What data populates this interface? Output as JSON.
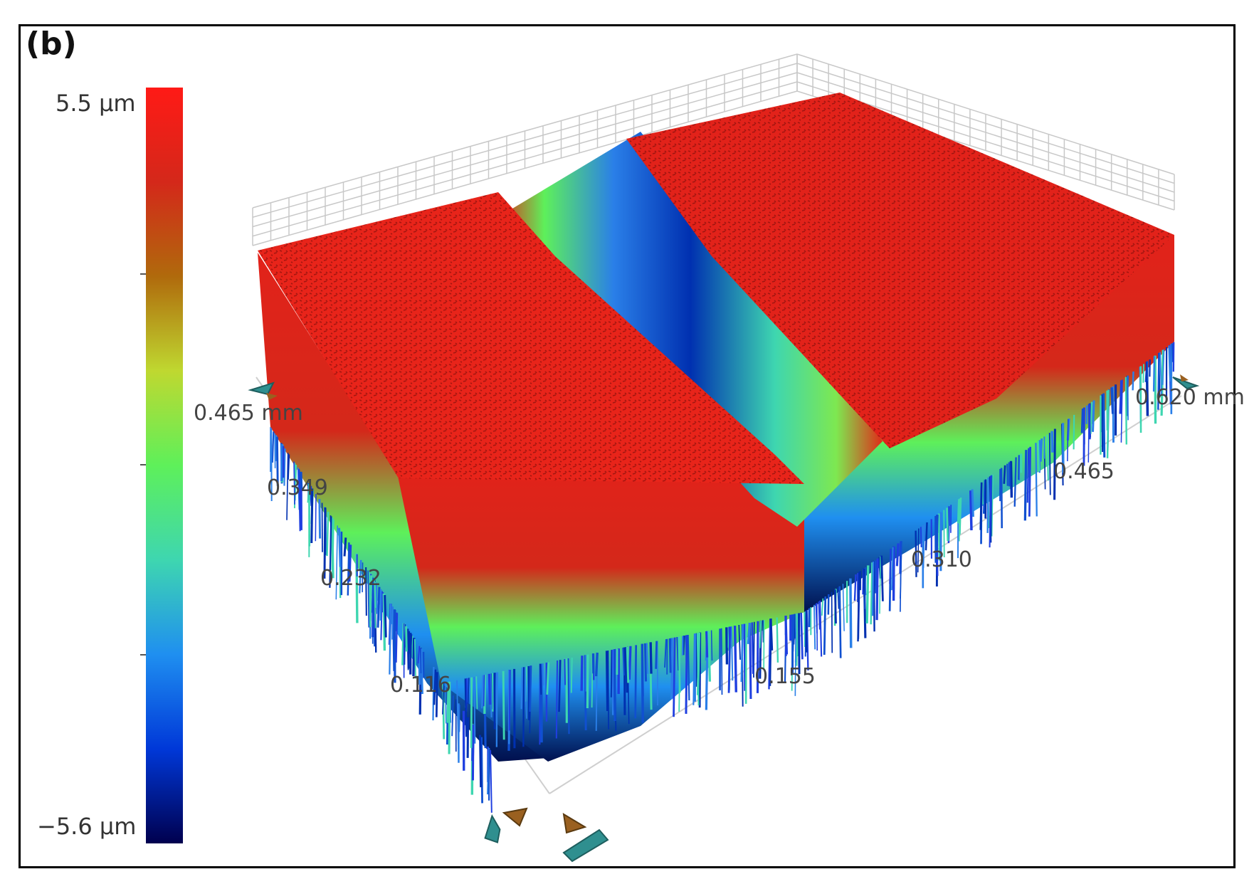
{
  "panel_label": "(b)",
  "chart_data": {
    "type": "surface3d",
    "title": "",
    "colorbar": {
      "max_label": "5.5 µm",
      "min_label": "−5.6 µm",
      "zlim": [
        -5.6,
        5.5
      ],
      "colormap": [
        "#00004e",
        "#0038d8",
        "#1f8ff0",
        "#3ed6b0",
        "#5ef05a",
        "#bfd830",
        "#b06a0c",
        "#d4281a",
        "#ff1a16"
      ]
    },
    "x_axis": {
      "unit": "mm",
      "tick_labels": [
        "0.155",
        "0.310",
        "0.465",
        "0.620 mm"
      ],
      "values": [
        0.155,
        0.31,
        0.465,
        0.62
      ]
    },
    "y_axis": {
      "unit": "mm",
      "tick_labels": [
        "0.116",
        "0.232",
        "0.349",
        "0.465 mm"
      ],
      "values": [
        0.116,
        0.232,
        0.349,
        0.465
      ]
    },
    "surface": {
      "description_values": {
        "plateau_height_um": 5.0,
        "groove_depth_um": -5.0,
        "groove_center_x_mm": 0.31
      }
    },
    "grid": true
  },
  "colors": {
    "frame": "#000000",
    "grid": "#c8c8c8",
    "rotate_teal": "#2f8f8f",
    "rotate_brown": "#9a6020"
  },
  "icons": [
    "rotate-left-icon",
    "rotate-right-icon",
    "rotate-down-icon",
    "rotate-up-icon"
  ]
}
